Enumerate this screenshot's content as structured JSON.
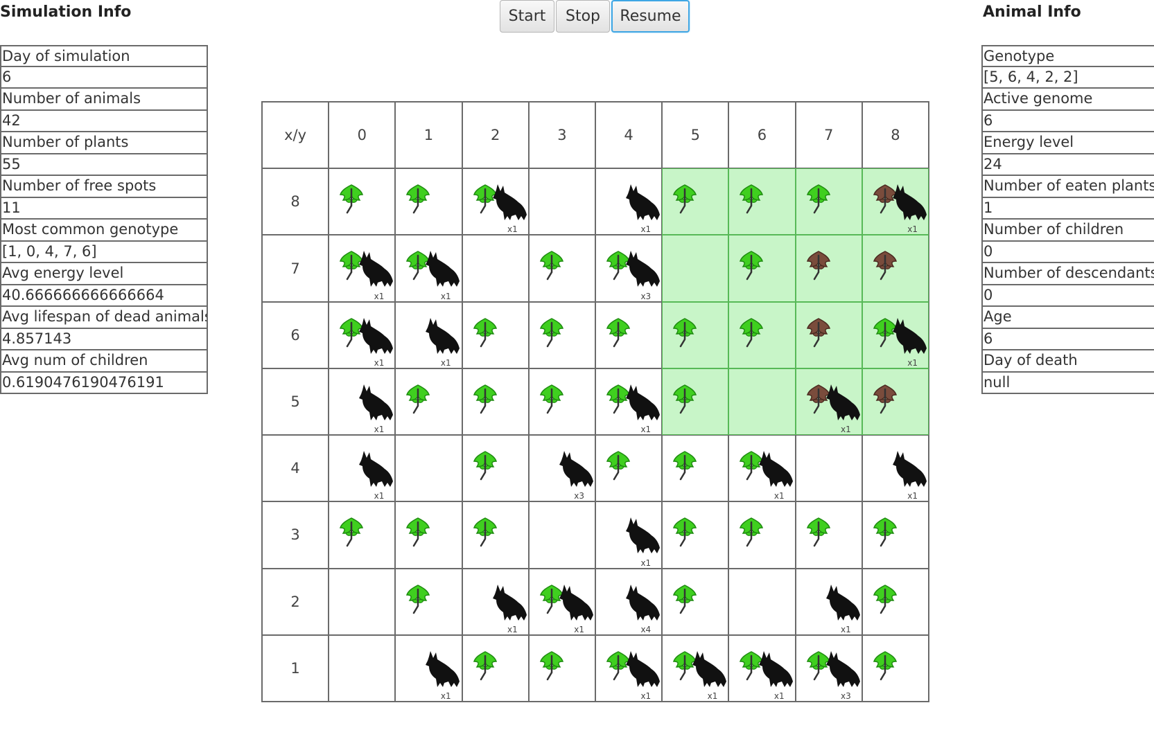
{
  "simulation_panel": {
    "title": "Simulation Info",
    "rows": [
      "Day of simulation",
      "6",
      "Number of animals",
      "42",
      "Number of plants",
      "55",
      "Number of free spots",
      "11",
      "Most common genotype",
      "[1, 0, 4, 7, 6]",
      "Avg energy level",
      "40.666666666666664",
      "Avg lifespan of dead animals",
      "4.857143",
      "Avg num of children",
      "0.6190476190476191"
    ]
  },
  "animal_panel": {
    "title": "Animal Info",
    "rows": [
      "Genotype",
      "[5, 6, 4, 2, 2]",
      "Active genome",
      "6",
      "Energy level",
      "24",
      "Number of eaten plants",
      "1",
      "Number of children",
      "0",
      "Number of descendants",
      "0",
      "Age",
      "6",
      "Day of death",
      "null"
    ]
  },
  "toolbar": {
    "start_label": "Start",
    "stop_label": "Stop",
    "resume_label": "Resume"
  },
  "grid": {
    "corner_label": "x/y",
    "columns": [
      "0",
      "1",
      "2",
      "3",
      "4",
      "5",
      "6",
      "7",
      "8"
    ],
    "legend": {
      "G": "green-plant-icon",
      "B": "poisoned-plant-icon",
      "W": "wolf-icon"
    },
    "colors": {
      "highlight": "#c8f5c8",
      "highlight_border": "#57b957",
      "green_plant": "#3fcf1f",
      "poisoned_plant": "#7a4c3c",
      "wolf": "#111111"
    },
    "rows": [
      {
        "y": "8",
        "cells": [
          {
            "plant": "G"
          },
          {
            "plant": "G"
          },
          {
            "plant": "G",
            "wolf": "x1"
          },
          {},
          {
            "wolf": "x1"
          },
          {
            "plant": "G",
            "green": true
          },
          {
            "plant": "G",
            "green": true
          },
          {
            "plant": "G",
            "green": true
          },
          {
            "plant": "B",
            "wolf": "x1",
            "green": true
          }
        ]
      },
      {
        "y": "7",
        "cells": [
          {
            "plant": "G",
            "wolf": "x1"
          },
          {
            "plant": "G",
            "wolf": "x1"
          },
          {},
          {
            "plant": "G"
          },
          {
            "plant": "G",
            "wolf": "x3"
          },
          {
            "green": true
          },
          {
            "plant": "G",
            "green": true
          },
          {
            "plant": "B",
            "green": true
          },
          {
            "plant": "B",
            "green": true
          }
        ]
      },
      {
        "y": "6",
        "cells": [
          {
            "plant": "G",
            "wolf": "x1"
          },
          {
            "wolf": "x1"
          },
          {
            "plant": "G"
          },
          {
            "plant": "G"
          },
          {
            "plant": "G"
          },
          {
            "plant": "G",
            "green": true
          },
          {
            "plant": "G",
            "green": true
          },
          {
            "plant": "B",
            "green": true
          },
          {
            "plant": "G",
            "wolf": "x1",
            "green": true
          }
        ]
      },
      {
        "y": "5",
        "cells": [
          {
            "wolf": "x1"
          },
          {
            "plant": "G"
          },
          {
            "plant": "G"
          },
          {
            "plant": "G"
          },
          {
            "plant": "G",
            "wolf": "x1"
          },
          {
            "plant": "G",
            "green": true
          },
          {
            "green": true
          },
          {
            "plant": "B",
            "wolf": "x1",
            "green": true
          },
          {
            "plant": "B",
            "green": true
          }
        ]
      },
      {
        "y": "4",
        "cells": [
          {
            "wolf": "x1"
          },
          {},
          {
            "plant": "G"
          },
          {
            "wolf": "x3"
          },
          {
            "plant": "G"
          },
          {
            "plant": "G"
          },
          {
            "plant": "G",
            "wolf": "x1"
          },
          {},
          {
            "wolf": "x1"
          }
        ]
      },
      {
        "y": "3",
        "cells": [
          {
            "plant": "G"
          },
          {
            "plant": "G"
          },
          {
            "plant": "G"
          },
          {},
          {
            "wolf": "x1"
          },
          {
            "plant": "G"
          },
          {
            "plant": "G"
          },
          {
            "plant": "G"
          },
          {
            "plant": "G"
          }
        ]
      },
      {
        "y": "2",
        "cells": [
          {},
          {
            "plant": "G"
          },
          {
            "wolf": "x1"
          },
          {
            "plant": "G",
            "wolf": "x1"
          },
          {
            "wolf": "x4"
          },
          {
            "plant": "G"
          },
          {},
          {
            "wolf": "x1"
          },
          {
            "plant": "G"
          }
        ]
      },
      {
        "y": "1",
        "cells": [
          {},
          {
            "wolf": "x1"
          },
          {
            "plant": "G"
          },
          {
            "plant": "G"
          },
          {
            "plant": "G",
            "wolf": "x1"
          },
          {
            "plant": "G",
            "wolf": "x1"
          },
          {
            "plant": "G",
            "wolf": "x1"
          },
          {
            "plant": "G",
            "wolf": "x3"
          },
          {
            "plant": "G"
          }
        ]
      }
    ]
  }
}
